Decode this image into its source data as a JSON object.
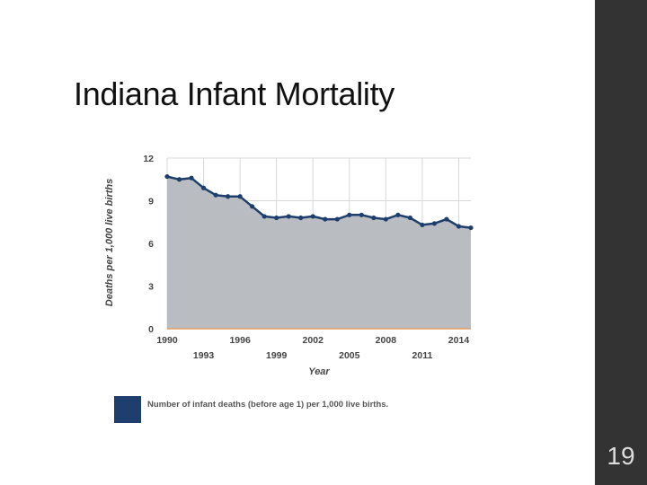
{
  "slide": {
    "title": "Indiana Infant Mortality",
    "page_number": "19",
    "colors": {
      "right_band": "#333333",
      "series": "#1e3f6e",
      "area_fill": "#b9bcc0",
      "baseline": "#e0a060",
      "grid": "#d8d8d8"
    }
  },
  "chart_data": {
    "type": "area",
    "title": "",
    "xlabel": "Year",
    "ylabel": "Deaths per 1,000 live births",
    "ylim": [
      0,
      12
    ],
    "yticks": [
      "0",
      "3",
      "6",
      "9",
      "12"
    ],
    "xticks_top": [
      "1990",
      "1996",
      "2002",
      "2008",
      "2014"
    ],
    "xticks_bottom": [
      "1993",
      "1999",
      "2005",
      "2011"
    ],
    "grid": true,
    "legend_position": "bottom",
    "x": [
      1990,
      1991,
      1992,
      1993,
      1994,
      1995,
      1996,
      1997,
      1998,
      1999,
      2000,
      2001,
      2002,
      2003,
      2004,
      2005,
      2006,
      2007,
      2008,
      2009,
      2010,
      2011,
      2012,
      2013,
      2014,
      2015
    ],
    "series": [
      {
        "name": "Number of infant deaths (before age 1) per 1,000 live births.",
        "values": [
          10.7,
          10.5,
          10.6,
          9.9,
          9.4,
          9.3,
          9.3,
          8.6,
          7.9,
          7.8,
          7.9,
          7.8,
          7.9,
          7.7,
          7.7,
          8.0,
          8.0,
          7.8,
          7.7,
          8.0,
          7.8,
          7.3,
          7.4,
          7.7,
          7.2,
          7.1
        ]
      }
    ]
  }
}
